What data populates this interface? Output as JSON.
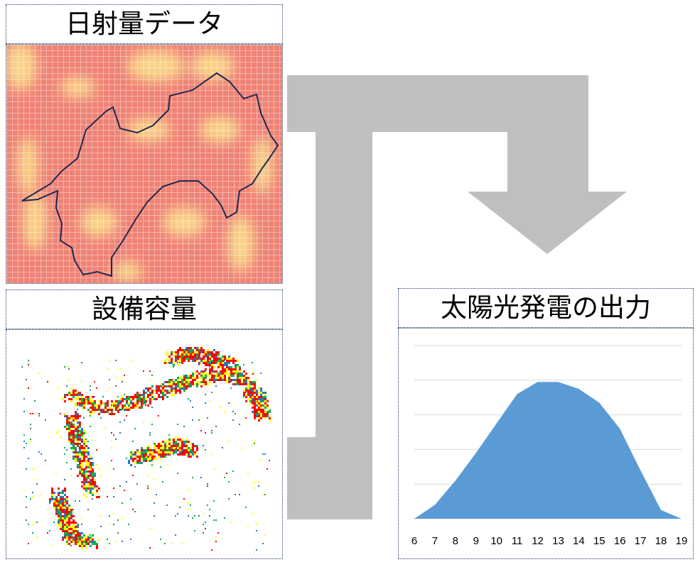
{
  "panels": {
    "radiation": {
      "title": "日射量データ"
    },
    "capacity": {
      "title": "設備容量"
    },
    "output": {
      "title": "太陽光発電の出力"
    }
  },
  "colors": {
    "border": "#1f3864",
    "arrow": "#bfbfbf",
    "outline": "#1f2a50",
    "heat_low": "#ef8275",
    "heat_high": "#fce38a",
    "cap_red": "#ff0000",
    "cap_yellow": "#ffff00",
    "cap_green": "#00b050",
    "cap_blue": "#2e75b6",
    "area_fill": "#5b9bd5"
  },
  "chart_data": {
    "type": "area",
    "x": [
      6,
      7,
      8,
      9,
      10,
      11,
      12,
      13,
      14,
      15,
      16,
      17,
      18,
      19
    ],
    "values": [
      0,
      8,
      22,
      38,
      55,
      72,
      79,
      79,
      75,
      67,
      52,
      28,
      5,
      0
    ],
    "ylim": [
      0,
      100
    ],
    "grid": true,
    "xlabel": "",
    "ylabel": "",
    "title": ""
  }
}
